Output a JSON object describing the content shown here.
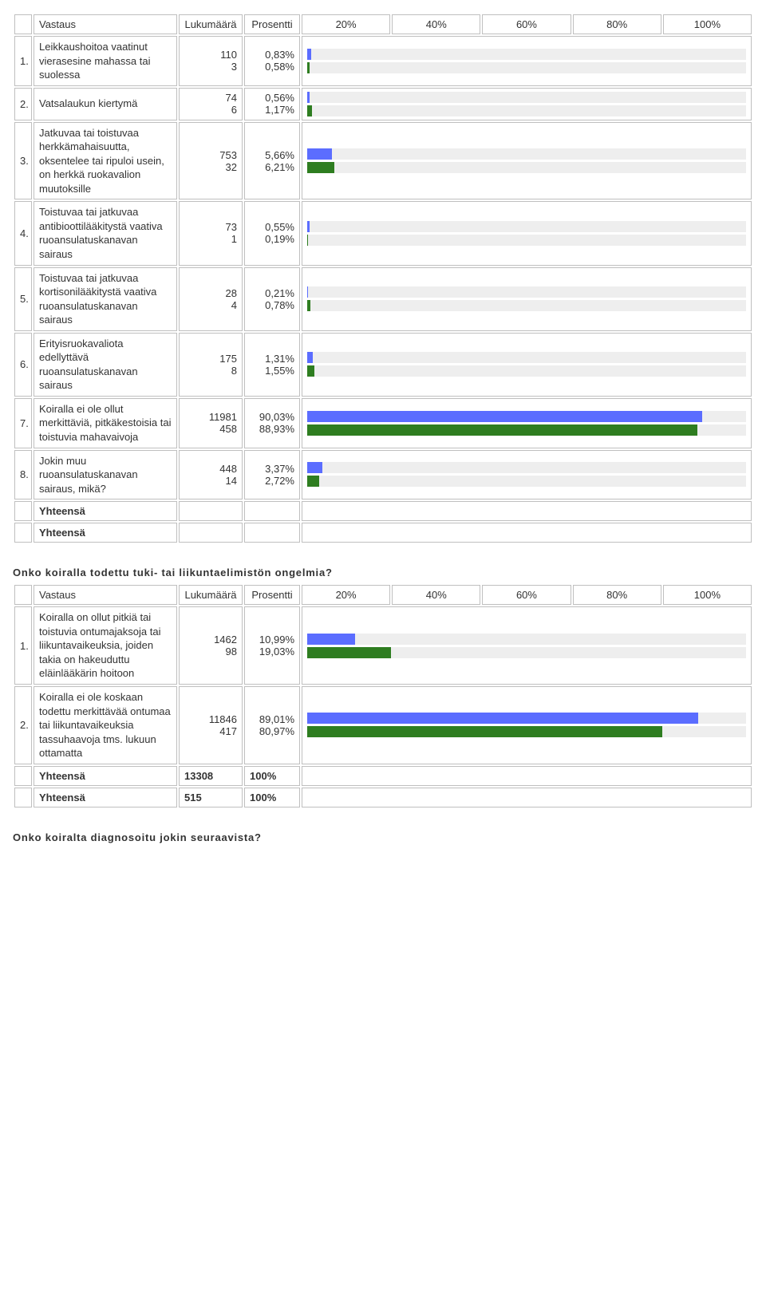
{
  "headers": {
    "answer": "Vastaus",
    "count": "Lukumäärä",
    "percent": "Prosentti",
    "ticks": [
      "20%",
      "40%",
      "60%",
      "80%",
      "100%"
    ]
  },
  "colors": {
    "series1": "#5b6dff",
    "series2": "#2e7d20",
    "track": "#eeeeee",
    "border": "#bfbfbf"
  },
  "table1": {
    "rows": [
      {
        "idx": "1.",
        "label": "Leikkaushoitoa vaatinut vierasesine mahassa tai suolessa",
        "c1": "110",
        "c2": "3",
        "p1": "0,83%",
        "p2": "0,58%",
        "v1": 0.83,
        "v2": 0.58
      },
      {
        "idx": "2.",
        "label": "Vatsalaukun kiertymä",
        "c1": "74",
        "c2": "6",
        "p1": "0,56%",
        "p2": "1,17%",
        "v1": 0.56,
        "v2": 1.17
      },
      {
        "idx": "3.",
        "label": "Jatkuvaa tai toistuvaa herkkämahaisuutta, oksentelee tai ripuloi usein, on herkkä ruokavalion muutoksille",
        "c1": "753",
        "c2": "32",
        "p1": "5,66%",
        "p2": "6,21%",
        "v1": 5.66,
        "v2": 6.21
      },
      {
        "idx": "4.",
        "label": "Toistuvaa tai jatkuvaa antibioottilääkitystä vaativa ruoansulatuskanavan sairaus",
        "c1": "73",
        "c2": "1",
        "p1": "0,55%",
        "p2": "0,19%",
        "v1": 0.55,
        "v2": 0.19
      },
      {
        "idx": "5.",
        "label": "Toistuvaa tai jatkuvaa kortisonilääkitystä vaativa ruoansulatuskanavan sairaus",
        "c1": "28",
        "c2": "4",
        "p1": "0,21%",
        "p2": "0,78%",
        "v1": 0.21,
        "v2": 0.78
      },
      {
        "idx": "6.",
        "label": "Erityisruokavaliota edellyttävä ruoansulatuskanavan sairaus",
        "c1": "175",
        "c2": "8",
        "p1": "1,31%",
        "p2": "1,55%",
        "v1": 1.31,
        "v2": 1.55
      },
      {
        "idx": "7.",
        "label": "Koiralla ei ole ollut merkittäviä, pitkäkestoisia tai toistuvia mahavaivoja",
        "c1": "11981",
        "c2": "458",
        "p1": "90,03%",
        "p2": "88,93%",
        "v1": 90.03,
        "v2": 88.93
      },
      {
        "idx": "8.",
        "label": "Jokin muu ruoansulatuskanavan sairaus, mikä?",
        "c1": "448",
        "c2": "14",
        "p1": "3,37%",
        "p2": "2,72%",
        "v1": 3.37,
        "v2": 2.72
      }
    ],
    "totals": [
      {
        "label": "Yhteensä",
        "count": "",
        "pct": ""
      },
      {
        "label": "Yhteensä",
        "count": "",
        "pct": ""
      }
    ]
  },
  "q2": {
    "title": "Onko koiralla todettu tuki- tai liikuntaelimistön ongelmia?",
    "rows": [
      {
        "idx": "1.",
        "label": "Koiralla on ollut pitkiä tai toistuvia ontumajaksoja tai liikuntavaikeuksia, joiden takia on hakeuduttu eläinlääkärin hoitoon",
        "c1": "1462",
        "c2": "98",
        "p1": "10,99%",
        "p2": "19,03%",
        "v1": 10.99,
        "v2": 19.03
      },
      {
        "idx": "2.",
        "label": "Koiralla ei ole koskaan todettu merkittävää ontumaa tai liikuntavaikeuksia tassuhaavoja tms. lukuun ottamatta",
        "c1": "11846",
        "c2": "417",
        "p1": "89,01%",
        "p2": "80,97%",
        "v1": 89.01,
        "v2": 80.97
      }
    ],
    "totals": [
      {
        "label": "Yhteensä",
        "count": "13308",
        "pct": "100%"
      },
      {
        "label": "Yhteensä",
        "count": "515",
        "pct": "100%"
      }
    ]
  },
  "q3": {
    "title": "Onko koiralta diagnosoitu jokin seuraavista?"
  }
}
